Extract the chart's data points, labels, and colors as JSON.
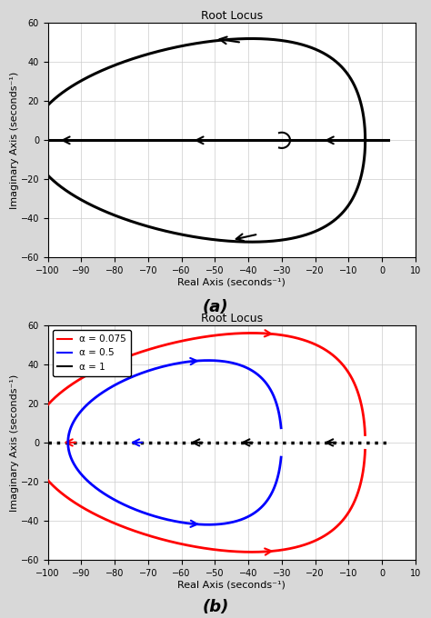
{
  "title": "Root Locus",
  "xlabel": "Real Axis (seconds⁻¹)",
  "ylabel": "Imaginary Axis (seconds⁻¹)",
  "xlim": [
    -100,
    10
  ],
  "ylim": [
    -60,
    60
  ],
  "xticks": [
    -100,
    -90,
    -80,
    -70,
    -60,
    -50,
    -40,
    -30,
    -20,
    -10,
    0,
    10
  ],
  "yticks": [
    -60,
    -40,
    -20,
    0,
    20,
    40,
    60
  ],
  "label_a": "(a)",
  "label_b": "(b)",
  "legend_labels": [
    "α = 0.075",
    "α = 0.5",
    "α = 1"
  ],
  "legend_colors": [
    "red",
    "blue",
    "black"
  ],
  "fig_bg": "#d8d8d8",
  "plot_bg": "#ffffff",
  "grid_color": "#cccccc"
}
